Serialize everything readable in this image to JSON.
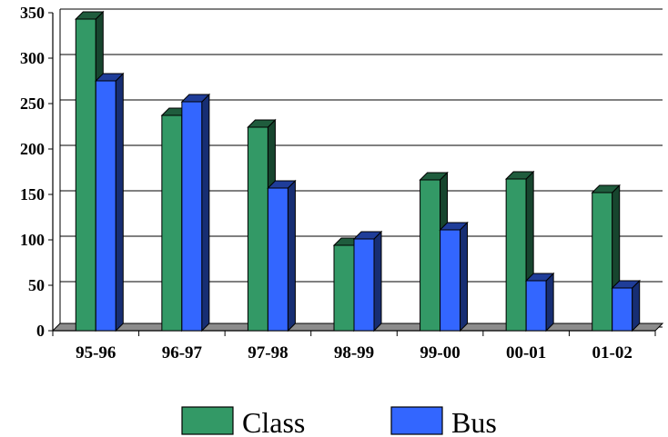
{
  "chart_data": {
    "type": "bar",
    "title": "",
    "xlabel": "",
    "ylabel": "",
    "categories": [
      "95-96",
      "96-97",
      "97-98",
      "98-99",
      "99-00",
      "00-01",
      "01-02"
    ],
    "series": [
      {
        "name": "Class",
        "values": [
          343,
          237,
          224,
          94,
          166,
          167,
          152
        ],
        "color": "#339966"
      },
      {
        "name": "Bus",
        "values": [
          275,
          252,
          157,
          101,
          111,
          55,
          47
        ],
        "color": "#3366ff"
      }
    ],
    "ylim": [
      0,
      350
    ],
    "yticks": [
      0,
      50,
      100,
      150,
      200,
      250,
      300,
      350
    ],
    "grid": true,
    "legend_position": "bottom",
    "style": "3d-clustered-column"
  }
}
